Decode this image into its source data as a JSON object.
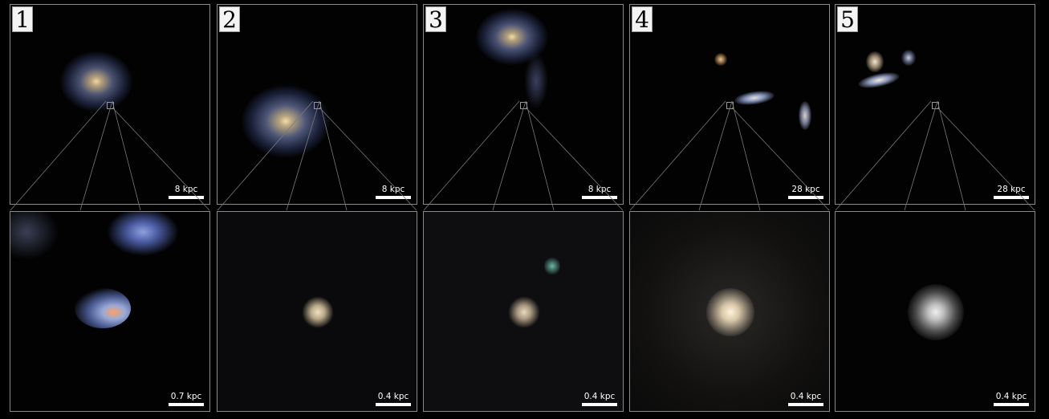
{
  "panels": [
    {
      "number": "1",
      "top_scale": "8 kpc",
      "bottom_scale": "0.7 kpc"
    },
    {
      "number": "2",
      "top_scale": "8 kpc",
      "bottom_scale": "0.4 kpc"
    },
    {
      "number": "3",
      "top_scale": "8 kpc",
      "bottom_scale": "0.4 kpc"
    },
    {
      "number": "4",
      "top_scale": "28 kpc",
      "bottom_scale": "0.4 kpc"
    },
    {
      "number": "5",
      "top_scale": "28 kpc",
      "bottom_scale": "0.4 kpc"
    }
  ]
}
